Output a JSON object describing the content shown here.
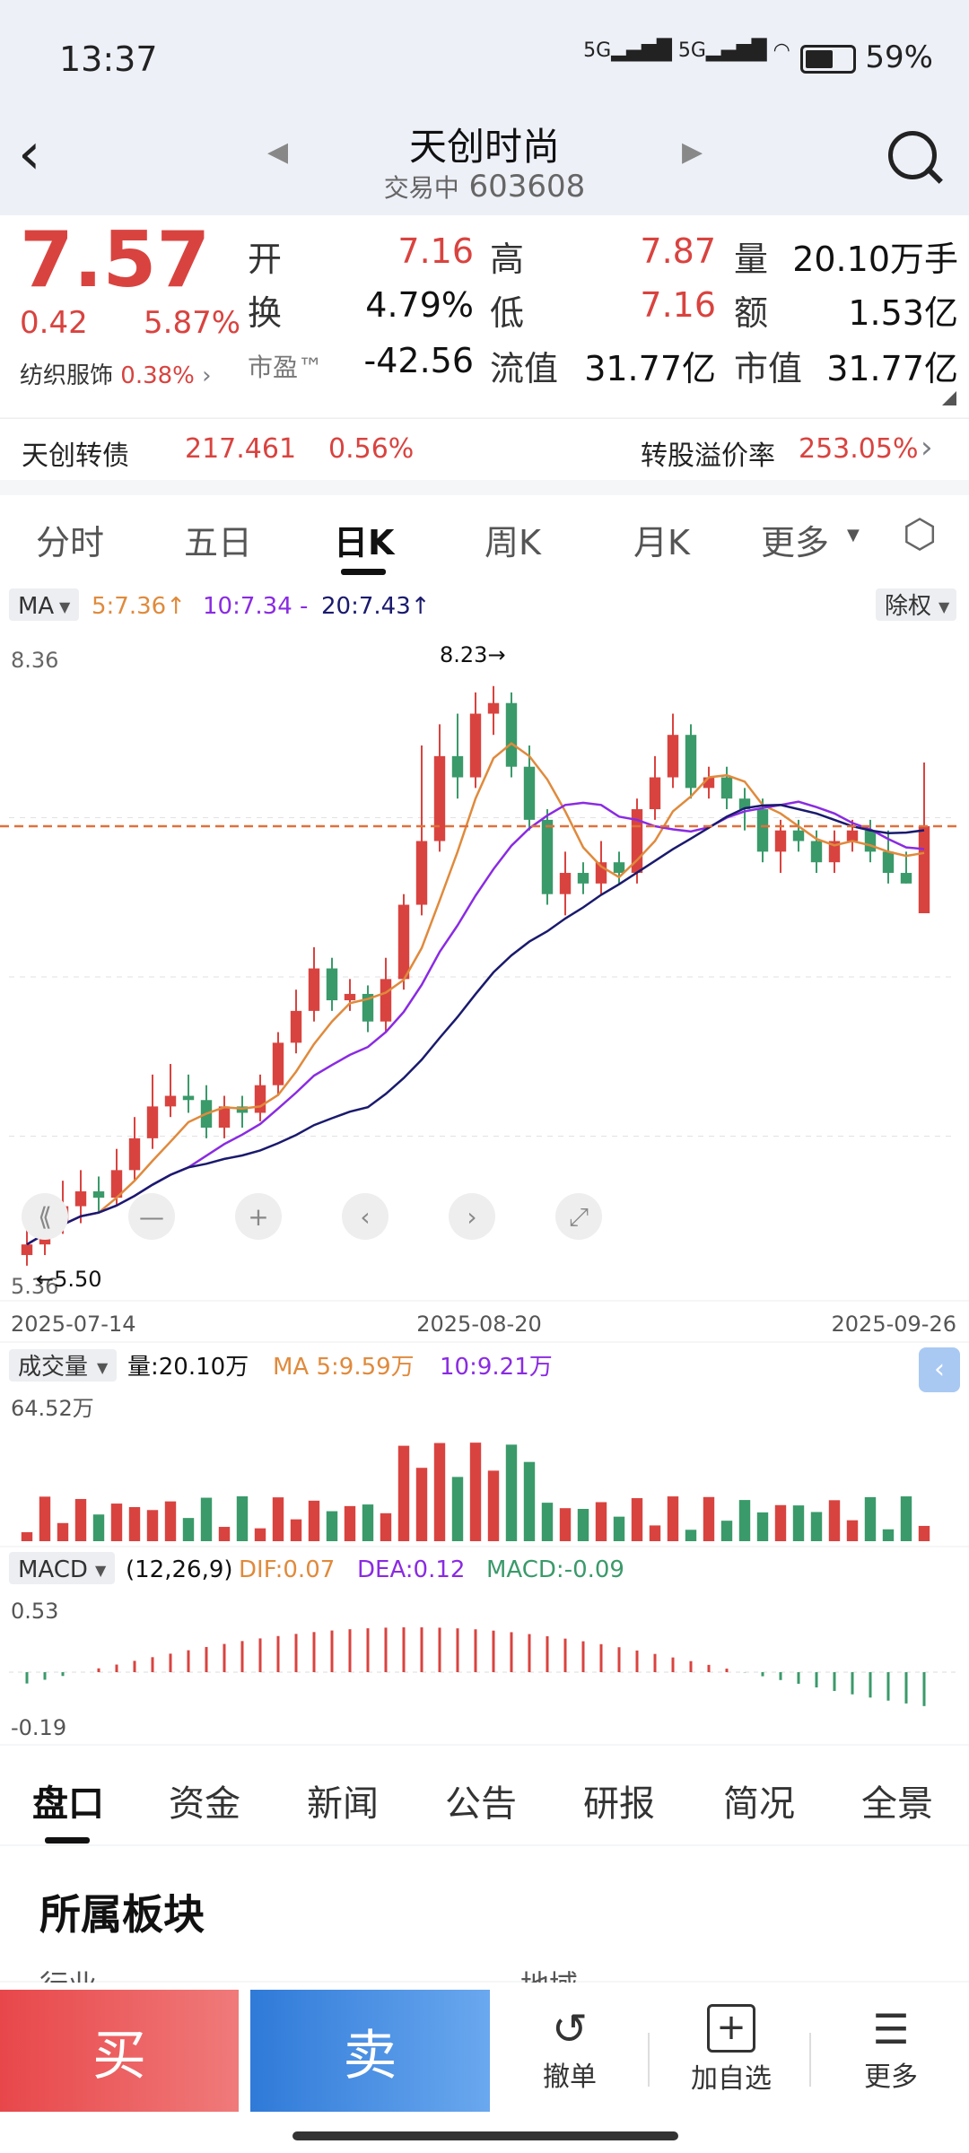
{
  "status_bar": {
    "time": "13:37",
    "signal": "5G 5G",
    "battery": "59%"
  },
  "header": {
    "stock_name": "天创时尚",
    "status": "交易中",
    "code": "603608"
  },
  "quote": {
    "price": "7.57",
    "change": "0.42",
    "change_pct": "5.87%",
    "sector": "纺织服饰",
    "sector_pct": "0.38%",
    "fields": [
      {
        "label": "开",
        "value": "7.16",
        "color": "red"
      },
      {
        "label": "高",
        "value": "7.87",
        "color": "red"
      },
      {
        "label": "量",
        "value": "20.10万手",
        "color": "black"
      },
      {
        "label": "换",
        "value": "4.79%",
        "color": "black"
      },
      {
        "label": "低",
        "value": "7.16",
        "color": "red"
      },
      {
        "label": "额",
        "value": "1.53亿",
        "color": "black"
      },
      {
        "label": "市盈™",
        "value": "-42.56",
        "color": "black"
      },
      {
        "label": "流值",
        "value": "31.77亿",
        "color": "black"
      },
      {
        "label": "市值",
        "value": "31.77亿",
        "color": "black"
      }
    ]
  },
  "convertible": {
    "name": "天创转债",
    "price": "217.461",
    "pct": "0.56%",
    "premium_label": "转股溢价率",
    "premium": "253.05%"
  },
  "tabs": [
    "分时",
    "五日",
    "日K",
    "周K",
    "月K",
    "更多"
  ],
  "active_tab": "日K",
  "ma_legend": {
    "label": "MA",
    "ma5": "5:7.36↑",
    "ma10": "10:7.34 -",
    "ma20": "20:7.43↑",
    "adjust": "除权"
  },
  "chart_labels": {
    "high": "8.36",
    "low": "5.36",
    "max_mark": "8.23→",
    "min_mark": "←5.50",
    "dates": [
      "2025-07-14",
      "2025-08-20",
      "2025-09-26"
    ]
  },
  "volume": {
    "label": "成交量",
    "vol": "量:20.10万",
    "ma5": "MA 5:9.59万",
    "ma10": "10:9.21万",
    "max": "64.52万"
  },
  "macd": {
    "label": "MACD",
    "params": "(12,26,9)",
    "dif": "DIF:0.07",
    "dea": "DEA:0.12",
    "macd": "MACD:-0.09",
    "top": "0.53",
    "bottom": "-0.19"
  },
  "bottom_tabs": [
    "盘口",
    "资金",
    "新闻",
    "公告",
    "研报",
    "简况",
    "全景"
  ],
  "sector_title": "所属板块",
  "sector_items": [
    "行业",
    "地域"
  ],
  "actions": {
    "buy": "买",
    "sell": "卖",
    "cancel": "撤单",
    "add": "加自选",
    "more": "更多"
  },
  "colors": {
    "up": "#d9433f",
    "down": "#3a9a6a",
    "ma5": "#e08a3c",
    "ma10": "#8a2be2",
    "ma20": "#1a1a6e"
  },
  "chart_data": {
    "type": "candlestick",
    "x_range": [
      "2025-07-14",
      "2025-09-26"
    ],
    "ylim": [
      5.36,
      8.36
    ],
    "candles": [
      [
        5.55,
        5.6,
        5.5,
        5.7
      ],
      [
        5.6,
        5.7,
        5.55,
        5.8
      ],
      [
        5.7,
        5.78,
        5.65,
        5.9
      ],
      [
        5.78,
        5.85,
        5.7,
        5.95
      ],
      [
        5.85,
        5.82,
        5.75,
        5.92
      ],
      [
        5.82,
        5.95,
        5.78,
        6.05
      ],
      [
        5.95,
        6.1,
        5.9,
        6.2
      ],
      [
        6.1,
        6.25,
        6.05,
        6.4
      ],
      [
        6.25,
        6.3,
        6.2,
        6.45
      ],
      [
        6.3,
        6.28,
        6.22,
        6.4
      ],
      [
        6.28,
        6.15,
        6.1,
        6.35
      ],
      [
        6.15,
        6.25,
        6.1,
        6.3
      ],
      [
        6.25,
        6.22,
        6.15,
        6.3
      ],
      [
        6.22,
        6.35,
        6.18,
        6.4
      ],
      [
        6.35,
        6.55,
        6.3,
        6.6
      ],
      [
        6.55,
        6.7,
        6.5,
        6.8
      ],
      [
        6.7,
        6.9,
        6.65,
        7.0
      ],
      [
        6.9,
        6.75,
        6.7,
        6.95
      ],
      [
        6.75,
        6.78,
        6.7,
        6.85
      ],
      [
        6.78,
        6.65,
        6.6,
        6.82
      ],
      [
        6.65,
        6.85,
        6.6,
        6.95
      ],
      [
        6.85,
        7.2,
        6.8,
        7.25
      ],
      [
        7.2,
        7.5,
        7.15,
        7.95
      ],
      [
        7.5,
        7.9,
        7.45,
        8.05
      ],
      [
        7.9,
        7.8,
        7.7,
        8.1
      ],
      [
        7.8,
        8.1,
        7.75,
        8.2
      ],
      [
        8.1,
        8.15,
        8.0,
        8.23
      ],
      [
        8.15,
        7.85,
        7.8,
        8.2
      ],
      [
        7.85,
        7.6,
        7.55,
        7.95
      ],
      [
        7.6,
        7.25,
        7.2,
        7.65
      ],
      [
        7.25,
        7.35,
        7.15,
        7.45
      ],
      [
        7.35,
        7.3,
        7.25,
        7.4
      ],
      [
        7.3,
        7.4,
        7.25,
        7.5
      ],
      [
        7.4,
        7.35,
        7.3,
        7.45
      ],
      [
        7.35,
        7.65,
        7.3,
        7.7
      ],
      [
        7.65,
        7.8,
        7.6,
        7.9
      ],
      [
        7.8,
        8.0,
        7.75,
        8.1
      ],
      [
        8.0,
        7.75,
        7.7,
        8.05
      ],
      [
        7.75,
        7.8,
        7.7,
        7.85
      ],
      [
        7.8,
        7.7,
        7.65,
        7.85
      ],
      [
        7.7,
        7.65,
        7.55,
        7.75
      ],
      [
        7.65,
        7.45,
        7.4,
        7.7
      ],
      [
        7.45,
        7.55,
        7.35,
        7.6
      ],
      [
        7.55,
        7.5,
        7.45,
        7.6
      ],
      [
        7.5,
        7.4,
        7.35,
        7.55
      ],
      [
        7.4,
        7.5,
        7.35,
        7.55
      ],
      [
        7.5,
        7.55,
        7.45,
        7.6
      ],
      [
        7.55,
        7.45,
        7.4,
        7.6
      ],
      [
        7.45,
        7.35,
        7.3,
        7.55
      ],
      [
        7.35,
        7.3,
        7.3,
        7.45
      ],
      [
        7.16,
        7.57,
        7.16,
        7.87
      ]
    ]
  }
}
